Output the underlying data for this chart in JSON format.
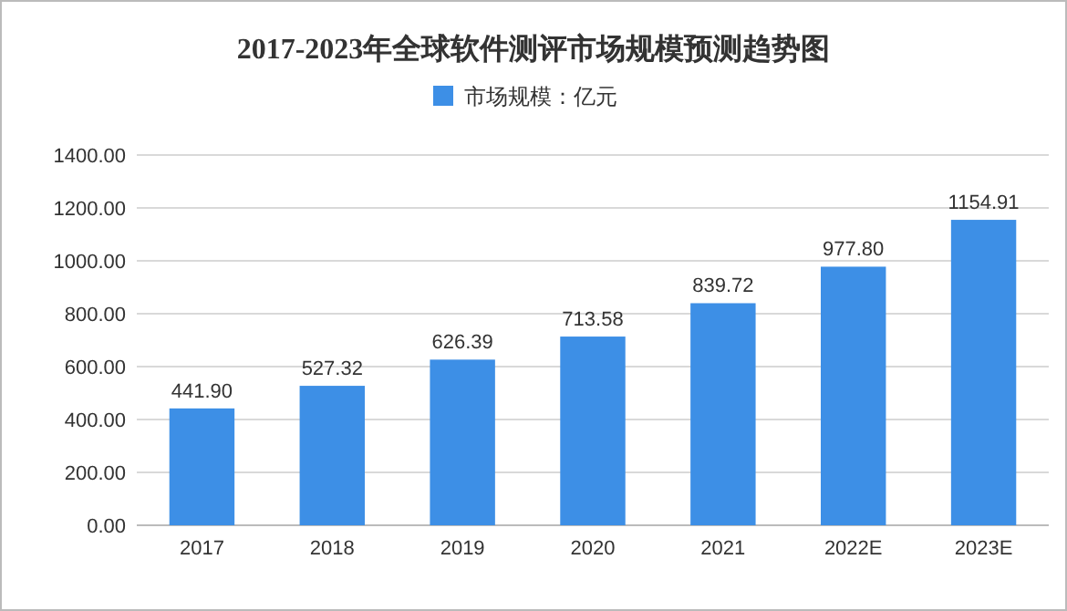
{
  "chart_data": {
    "type": "bar",
    "title": "2017-2023年全球软件测评市场规模预测趋势图",
    "categories": [
      "2017",
      "2018",
      "2019",
      "2020",
      "2021",
      "2022E",
      "2023E"
    ],
    "series": [
      {
        "name": "市场规模：亿元",
        "color": "#3d8fe6",
        "values": [
          441.9,
          527.32,
          626.39,
          713.58,
          839.72,
          977.8,
          1154.91
        ]
      }
    ],
    "value_labels": [
      "441.90",
      "527.32",
      "626.39",
      "713.58",
      "839.72",
      "977.80",
      "1154.91"
    ],
    "ylim": [
      0,
      1400
    ],
    "yticks": [
      {
        "value": 0,
        "label": "0.00"
      },
      {
        "value": 200,
        "label": "200.00"
      },
      {
        "value": 400,
        "label": "400.00"
      },
      {
        "value": 600,
        "label": "600.00"
      },
      {
        "value": 800,
        "label": "800.00"
      },
      {
        "value": 1000,
        "label": "1000.00"
      },
      {
        "value": 1200,
        "label": "1200.00"
      },
      {
        "value": 1400,
        "label": "1400.00"
      }
    ],
    "grid": "y",
    "legend": "top"
  }
}
